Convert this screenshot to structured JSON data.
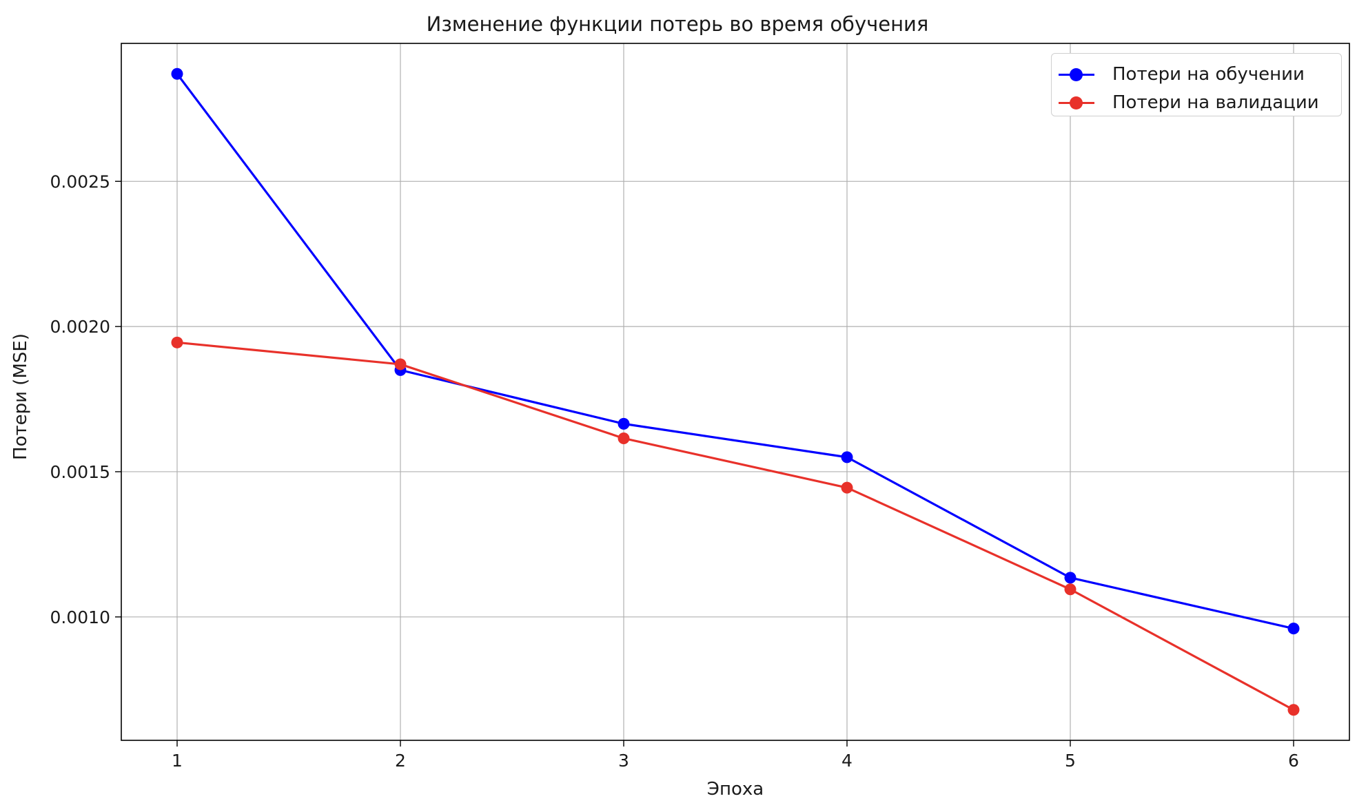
{
  "chart_data": {
    "type": "line",
    "title": "Изменение функции потерь во время обучения",
    "xlabel": "Эпоха",
    "ylabel": "Потери (MSE)",
    "x": [
      1,
      2,
      3,
      4,
      5,
      6
    ],
    "xticks": [
      "1",
      "2",
      "3",
      "4",
      "5",
      "6"
    ],
    "xlim": [
      0.75,
      6.25
    ],
    "yticks": [
      "0.0010",
      "0.0015",
      "0.0020",
      "0.0025"
    ],
    "ytick_values": [
      0.001,
      0.0015,
      0.002,
      0.0025
    ],
    "ylim": [
      0.000575,
      0.002975
    ],
    "grid": true,
    "legend_position": "top-right",
    "series": [
      {
        "name": "Потери на обучении",
        "color": "#0000ff",
        "marker": "circle",
        "values": [
          0.00287,
          0.00185,
          0.001665,
          0.00155,
          0.001135,
          0.00096
        ]
      },
      {
        "name": "Потери на валидации",
        "color": "#e8312a",
        "marker": "circle",
        "values": [
          0.001945,
          0.00187,
          0.001615,
          0.001445,
          0.001095,
          0.00068
        ]
      }
    ]
  }
}
